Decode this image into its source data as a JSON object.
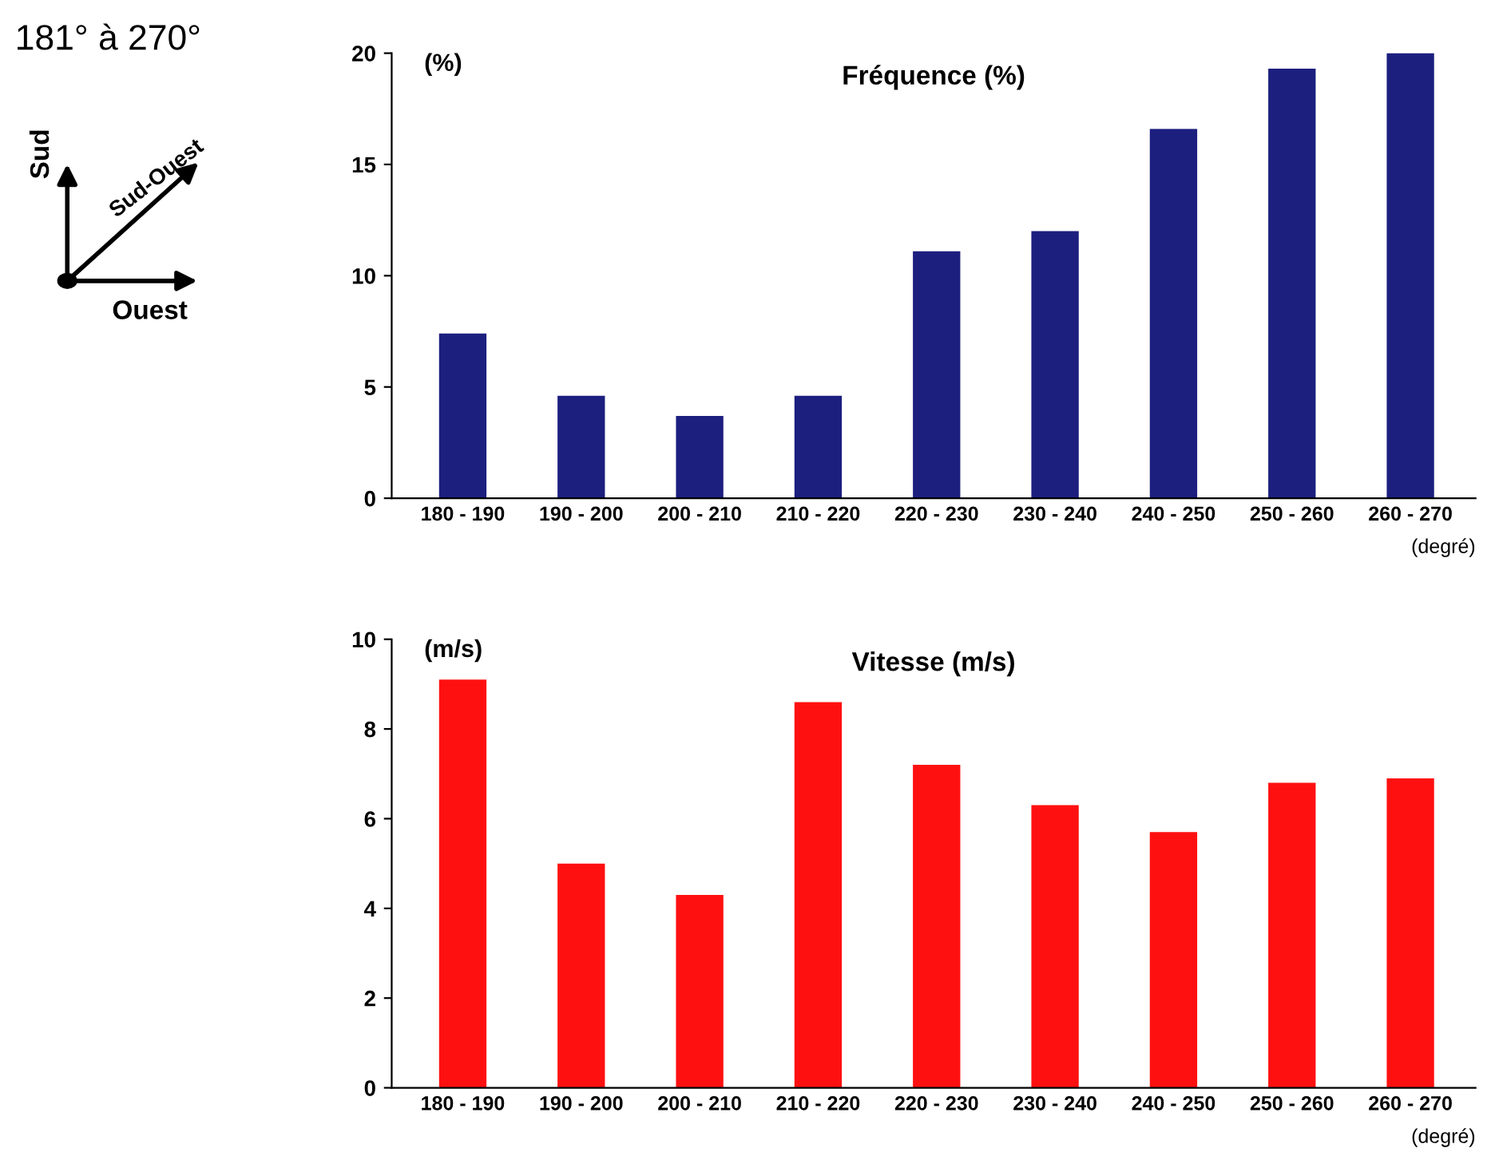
{
  "chart_data": [
    {
      "type": "bar",
      "title": "Fréquence (%)",
      "ylabel": "(%)",
      "xlabel": "(degré)",
      "categories": [
        "180 - 190",
        "190 - 200",
        "200 - 210",
        "210 - 220",
        "220 - 230",
        "230 - 240",
        "240 - 250",
        "250 - 260",
        "260 - 270"
      ],
      "values": [
        7.4,
        4.6,
        3.7,
        4.6,
        11.1,
        12.0,
        16.6,
        19.3,
        20.0
      ],
      "color": "#1c1f7e",
      "ylim": [
        0,
        20
      ],
      "yticks": [
        0,
        5,
        10,
        15,
        20
      ],
      "grid": false,
      "annotations": [
        "181° à 270°",
        "Sud",
        "Sud-Ouest",
        "Ouest"
      ]
    },
    {
      "type": "bar",
      "title": "Vitesse (m/s)",
      "ylabel": "(m/s)",
      "xlabel": "(degré)",
      "categories": [
        "180 - 190",
        "190 - 200",
        "200 - 210",
        "210 - 220",
        "220 - 230",
        "230 - 240",
        "240 - 250",
        "250 - 260",
        "260 - 270"
      ],
      "values": [
        9.1,
        5.0,
        4.3,
        8.6,
        7.2,
        6.3,
        5.7,
        6.8,
        6.9
      ],
      "color": "#ff1010",
      "ylim": [
        0,
        10
      ],
      "yticks": [
        0,
        2,
        4,
        6,
        8,
        10
      ],
      "grid": false
    }
  ]
}
